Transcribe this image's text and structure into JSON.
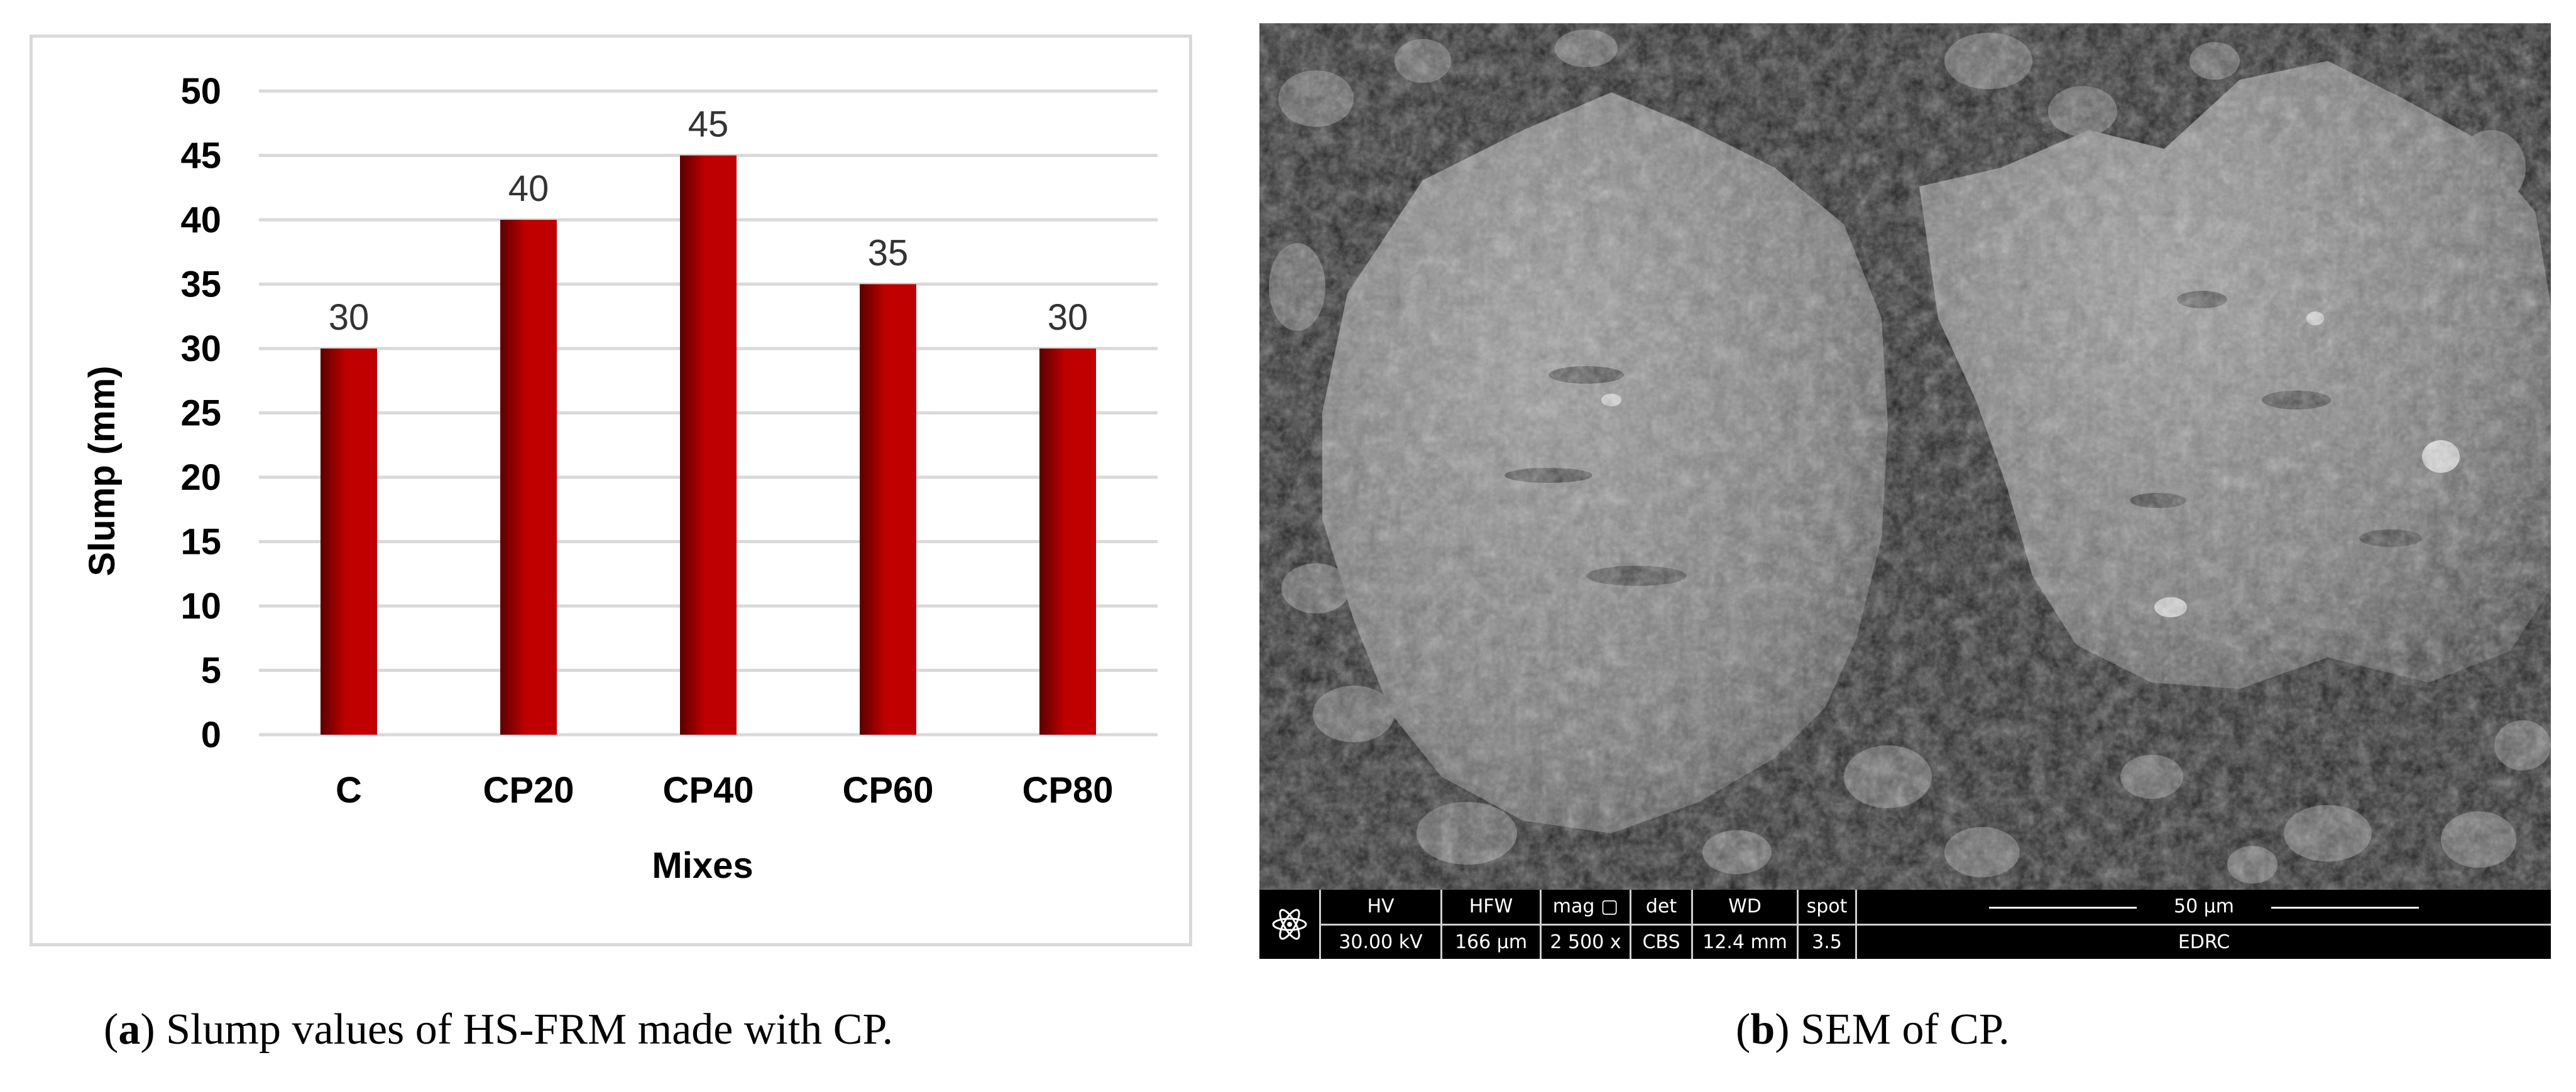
{
  "chart_data": {
    "type": "bar",
    "categories": [
      "C",
      "CP20",
      "CP40",
      "CP60",
      "CP80"
    ],
    "values": [
      30,
      40,
      45,
      35,
      30
    ],
    "data_labels": [
      "30",
      "40",
      "45",
      "35",
      "30"
    ],
    "xlabel": "Mixes",
    "ylabel": "Slump (mm)",
    "ylim": [
      0,
      50
    ],
    "ytick_step": 5,
    "grid": true,
    "legend": false,
    "bar_color": "#c00000",
    "bar_shade_color": "#5a0000"
  },
  "sem": {
    "cells": [
      {
        "key": "HV",
        "value": "30.00 kV"
      },
      {
        "key": "HFW",
        "value": "166 µm"
      },
      {
        "key": "mag ▢",
        "value": "2 500 x"
      },
      {
        "key": "det",
        "value": "CBS"
      },
      {
        "key": "WD",
        "value": "12.4 mm"
      },
      {
        "key": "spot",
        "value": "3.5"
      }
    ],
    "scale_label": "50 µm",
    "lab": "EDRC"
  },
  "captions": {
    "a_letter": "a",
    "a_text": " Slump values of HS-FRM made with CP.",
    "b_letter": "b",
    "b_text": " SEM of CP."
  }
}
